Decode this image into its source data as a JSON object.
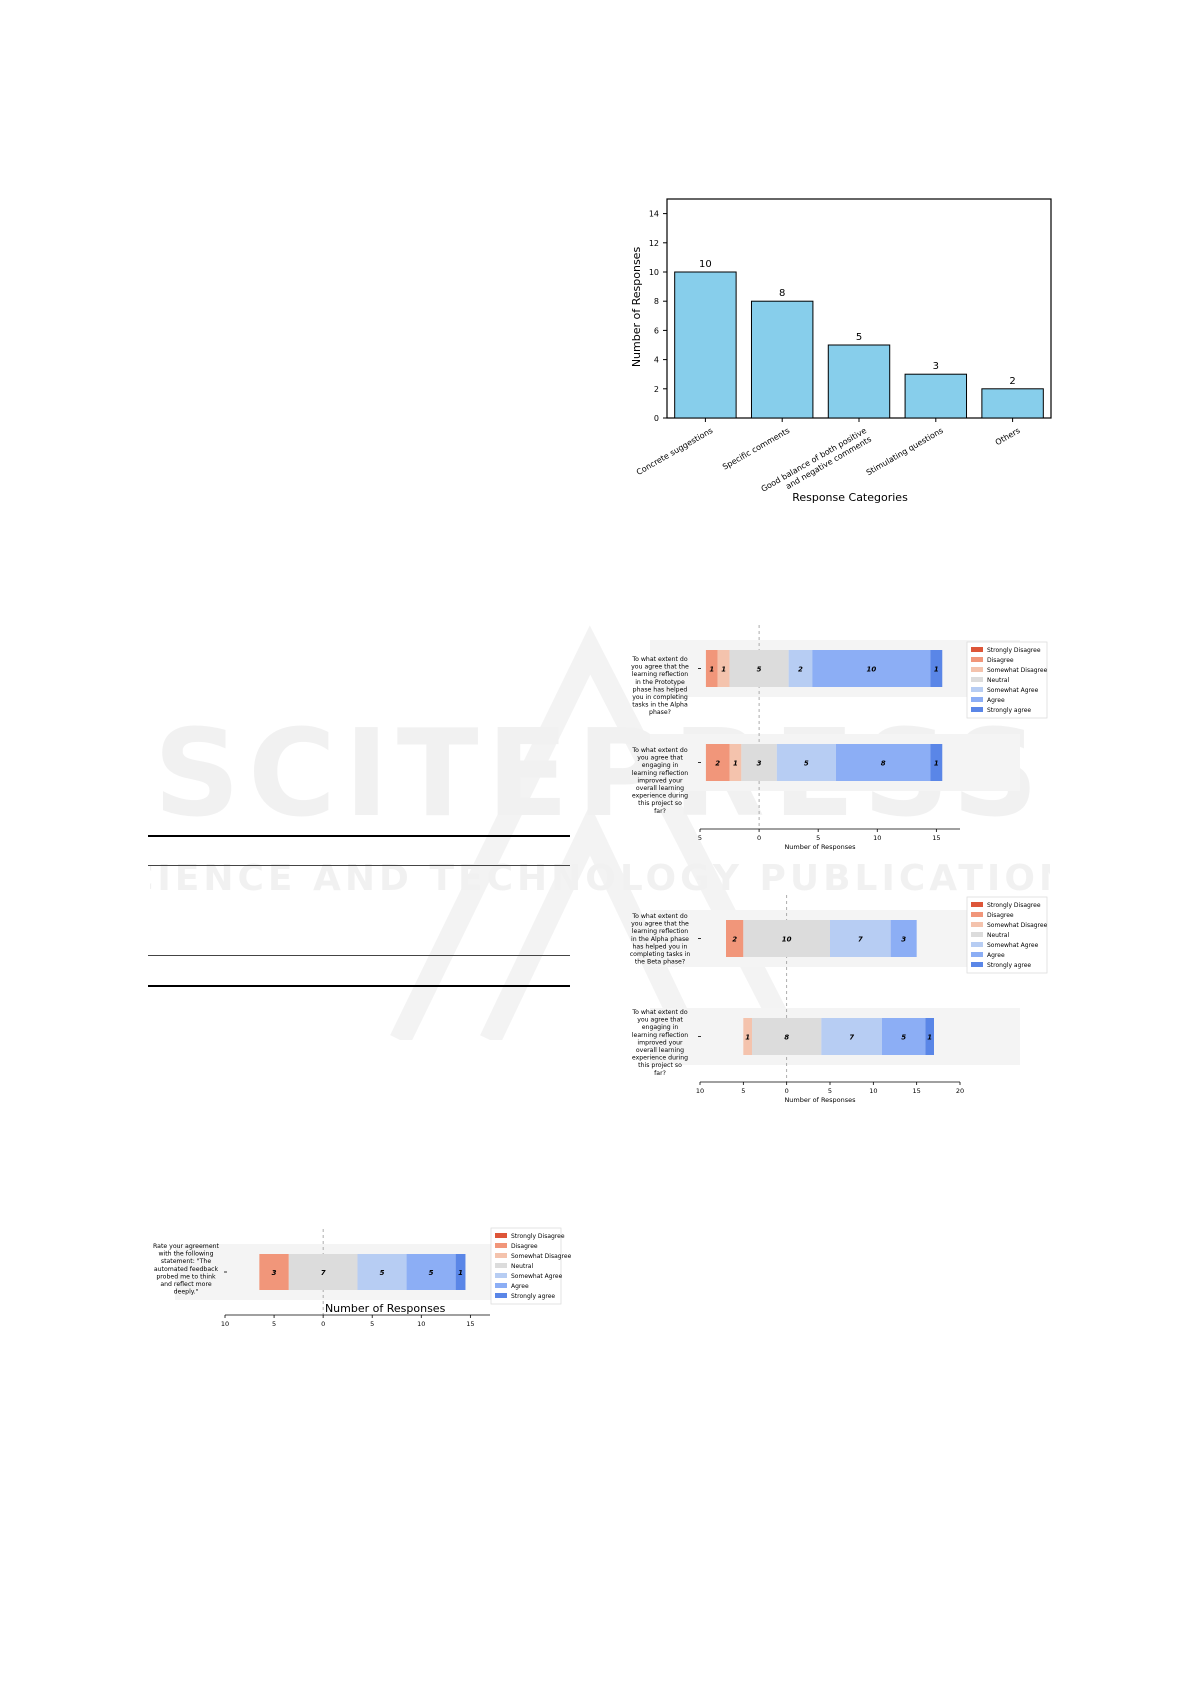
{
  "bar_chart": {
    "chart_data": {
      "type": "bar",
      "categories": [
        "Concrete suggestions",
        "Specific comments",
        "Good balance of both positive\nand negative comments",
        "Stimulating questions",
        "Others"
      ],
      "values": [
        10,
        8,
        5,
        3,
        2
      ],
      "xlabel": "Response Categories",
      "ylabel": "Number of Responses",
      "ylim": [
        0,
        15
      ],
      "yticks": [
        0,
        2,
        4,
        6,
        8,
        10,
        12,
        14
      ],
      "bar_color": "#87ceeb",
      "data_labels": true
    }
  },
  "likert_legend": [
    "Strongly Disagree",
    "Disagree",
    "Somewhat Disagree",
    "Neutral",
    "Somewhat Agree",
    "Agree",
    "Strongly agree"
  ],
  "likert_colors": [
    "#dd5538",
    "#f1967a",
    "#f4c3ad",
    "#dcdcdc",
    "#b7cdf3",
    "#8caef5",
    "#5a86e7"
  ],
  "likert_charts": [
    {
      "chart_data": {
        "type": "bar",
        "orientation": "diverging-horizontal",
        "xlabel": "Number of Responses",
        "xlim": [
          -5,
          17
        ],
        "xticks": [
          -5,
          0,
          5,
          10,
          15
        ],
        "xtick_labels": [
          "5",
          "0",
          "5",
          "10",
          "15"
        ],
        "rows": [
          {
            "question": "To what extent do you agree that the learning reflection in the Prototype phase has helped you in completing tasks in the Alpha phase?",
            "counts": [
              0,
              1,
              1,
              5,
              2,
              10,
              1
            ]
          },
          {
            "question": "To what extent do you agree that engaging in learning reflection improved your overall learning experience during this project so far?",
            "counts": [
              0,
              2,
              1,
              3,
              5,
              8,
              1
            ]
          }
        ]
      }
    },
    {
      "chart_data": {
        "type": "bar",
        "orientation": "diverging-horizontal",
        "xlabel": "Number of Responses",
        "xlim": [
          -10,
          20
        ],
        "xticks": [
          -10,
          -5,
          0,
          5,
          10,
          15,
          20
        ],
        "xtick_labels": [
          "10",
          "5",
          "0",
          "5",
          "10",
          "15",
          "20"
        ],
        "rows": [
          {
            "question": "To what extent do you agree that the learning reflection in the Alpha phase has helped you in completing tasks in the Beta phase?",
            "counts": [
              0,
              2,
              0,
              10,
              7,
              3,
              0
            ]
          },
          {
            "question": "To what extent do you agree that engaging in learning reflection improved your overall learning experience during this project so far?",
            "counts": [
              0,
              0,
              1,
              8,
              7,
              5,
              1
            ]
          }
        ]
      }
    },
    {
      "chart_data": {
        "type": "bar",
        "orientation": "diverging-horizontal",
        "xlabel": "Number of Responses",
        "xlim": [
          -10,
          17
        ],
        "xticks": [
          -10,
          -5,
          0,
          5,
          10,
          15
        ],
        "xtick_labels": [
          "10",
          "5",
          "0",
          "5",
          "10",
          "15"
        ],
        "rows": [
          {
            "question": "Rate your agreement with the following statement: \"The automated feedback probed me to think and reflect more deeply.\"",
            "counts": [
              0,
              3,
              0,
              7,
              5,
              5,
              1
            ]
          }
        ]
      }
    }
  ],
  "watermark": {
    "brand": "SCITEPRESS",
    "tagline": "SCIENCE AND TECHNOLOGY PUBLICATIONS"
  }
}
